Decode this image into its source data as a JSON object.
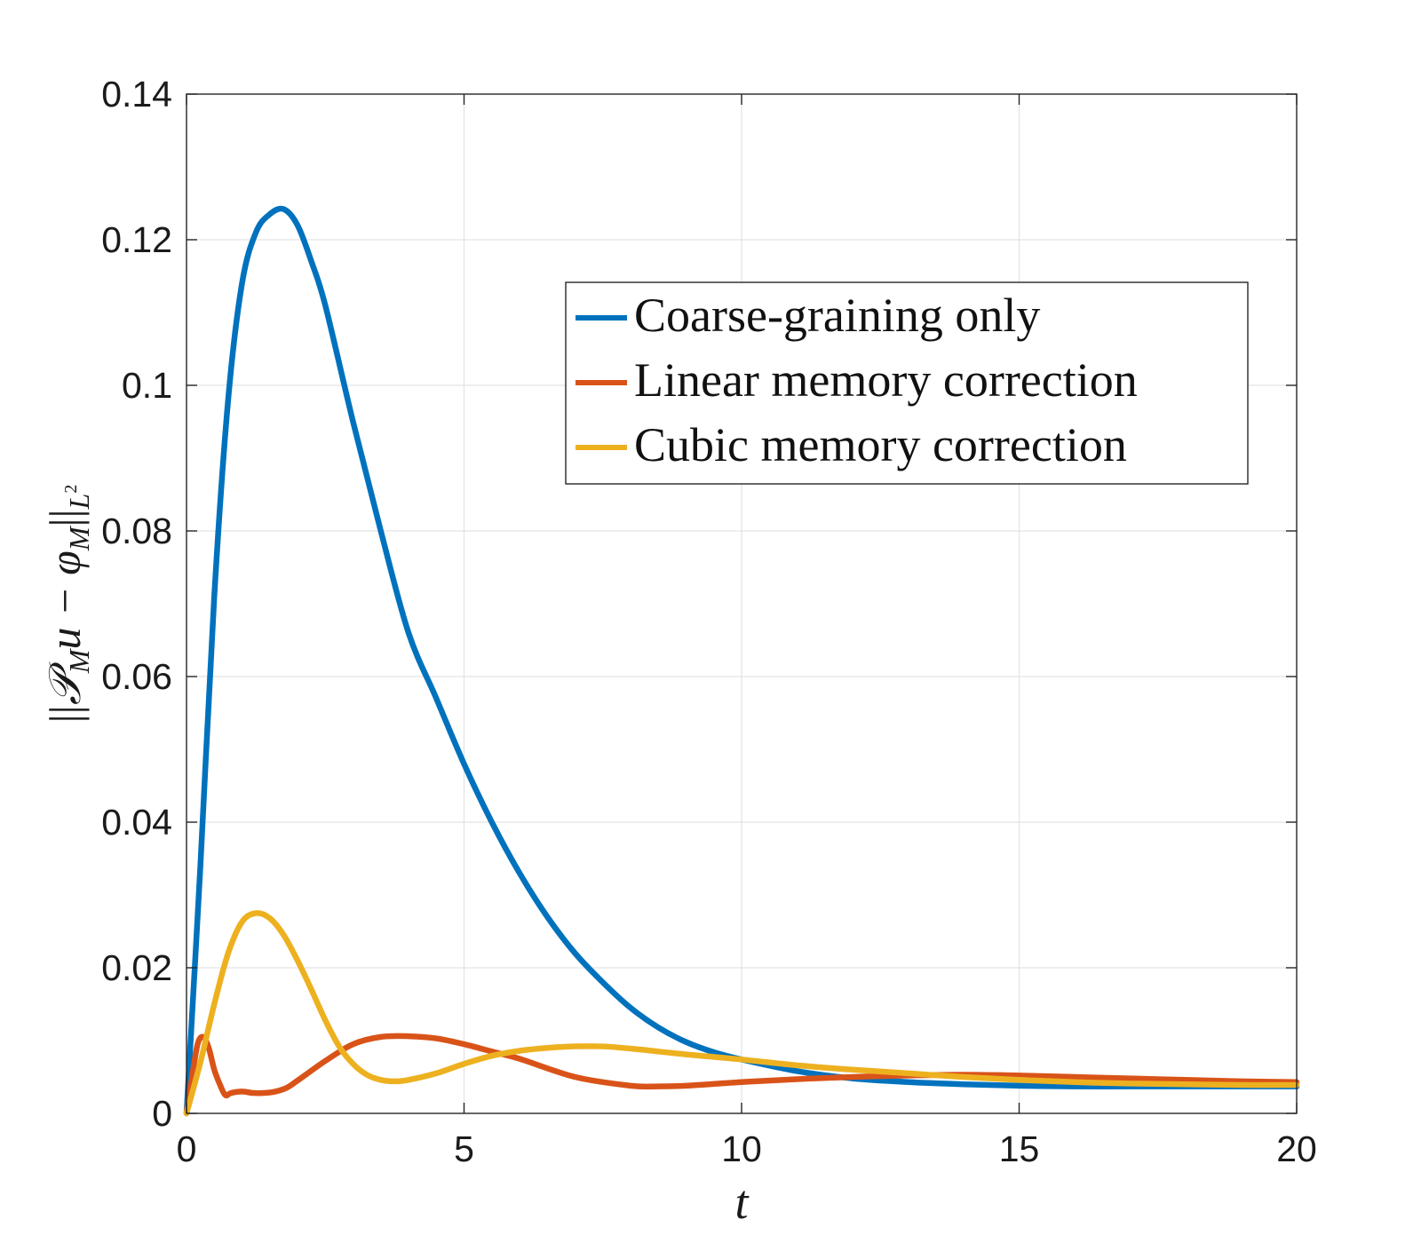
{
  "chart_data": {
    "type": "line",
    "title": "",
    "xlabel": "t",
    "ylabel": "||P_M u − φ_M||_{L²}",
    "ylabel_parts": {
      "open": "||",
      "P": "𝒫",
      "M1": "M",
      "u": "u − ",
      "phi": "φ",
      "M2": "M",
      "close": "||",
      "L": "L",
      "sq": "2"
    },
    "xlim": [
      0,
      20
    ],
    "ylim": [
      0,
      0.14
    ],
    "xticks": [
      0,
      5,
      10,
      15,
      20
    ],
    "yticks": [
      0,
      0.02,
      0.04,
      0.06,
      0.08,
      0.1,
      0.12,
      0.14
    ],
    "xtick_labels": [
      "0",
      "5",
      "10",
      "15",
      "20"
    ],
    "ytick_labels": [
      "0",
      "0.02",
      "0.04",
      "0.06",
      "0.08",
      "0.1",
      "0.12",
      "0.14"
    ],
    "grid": true,
    "legend_position": "upper-right",
    "series": [
      {
        "name": "Coarse-graining only",
        "color": "#0072BD",
        "x": [
          0,
          0.25,
          0.5,
          0.75,
          1.0,
          1.25,
          1.5,
          1.75,
          2.0,
          2.25,
          2.5,
          3.0,
          3.5,
          4.0,
          4.5,
          5.0,
          5.5,
          6.0,
          6.5,
          7.0,
          7.5,
          8.0,
          8.5,
          9.0,
          9.5,
          10.0,
          11.0,
          12.0,
          13.0,
          14.0,
          15.0,
          16.0,
          17.0,
          18.0,
          19.0,
          20.0
        ],
        "values": [
          0,
          0.034,
          0.071,
          0.098,
          0.114,
          0.121,
          0.1235,
          0.1242,
          0.122,
          0.117,
          0.111,
          0.095,
          0.08,
          0.066,
          0.057,
          0.048,
          0.04,
          0.033,
          0.027,
          0.022,
          0.018,
          0.0145,
          0.0118,
          0.0098,
          0.0084,
          0.0074,
          0.0058,
          0.0048,
          0.0043,
          0.004,
          0.0038,
          0.0037,
          0.0037,
          0.0037,
          0.0037,
          0.0037
        ]
      },
      {
        "name": "Linear memory correction",
        "color": "#D95319",
        "x": [
          0,
          0.1,
          0.2,
          0.3,
          0.4,
          0.5,
          0.6,
          0.7,
          0.8,
          1.0,
          1.2,
          1.4,
          1.6,
          1.8,
          2.0,
          2.5,
          3.0,
          3.5,
          4.0,
          4.5,
          5.0,
          5.5,
          6.0,
          7.0,
          8.0,
          8.5,
          9.0,
          10.0,
          11.0,
          12.0,
          13.0,
          14.0,
          15.0,
          16.0,
          17.0,
          18.0,
          19.0,
          20.0
        ],
        "values": [
          0,
          0.005,
          0.0095,
          0.0105,
          0.009,
          0.006,
          0.004,
          0.0025,
          0.0028,
          0.003,
          0.0028,
          0.0028,
          0.003,
          0.0035,
          0.0045,
          0.0072,
          0.0095,
          0.0105,
          0.0106,
          0.0103,
          0.0095,
          0.0085,
          0.0075,
          0.005,
          0.0038,
          0.0037,
          0.0038,
          0.0043,
          0.0047,
          0.005,
          0.0052,
          0.0053,
          0.0052,
          0.005,
          0.0048,
          0.0046,
          0.0044,
          0.0043
        ]
      },
      {
        "name": "Cubic memory correction",
        "color": "#EDB120",
        "x": [
          0,
          0.25,
          0.5,
          0.75,
          1.0,
          1.25,
          1.5,
          1.75,
          2.0,
          2.25,
          2.5,
          2.75,
          3.0,
          3.25,
          3.5,
          3.75,
          4.0,
          4.5,
          5.0,
          5.5,
          6.0,
          6.5,
          7.0,
          7.5,
          8.0,
          8.5,
          9.0,
          10.0,
          11.0,
          12.0,
          13.0,
          14.0,
          15.0,
          16.0,
          17.0,
          18.0,
          19.0,
          20.0
        ],
        "values": [
          0,
          0.007,
          0.015,
          0.022,
          0.0263,
          0.0275,
          0.0268,
          0.0245,
          0.021,
          0.017,
          0.0128,
          0.0092,
          0.0068,
          0.0053,
          0.0046,
          0.0044,
          0.0046,
          0.0055,
          0.0068,
          0.0079,
          0.0086,
          0.009,
          0.0092,
          0.0092,
          0.0089,
          0.0085,
          0.0081,
          0.0074,
          0.0066,
          0.006,
          0.0055,
          0.005,
          0.0046,
          0.0043,
          0.0041,
          0.004,
          0.0039,
          0.0039
        ]
      }
    ]
  }
}
